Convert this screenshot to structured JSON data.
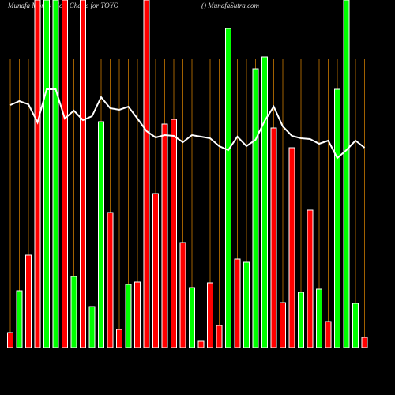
{
  "chart_data": {
    "type": "bar",
    "title": "Munafa Money Flow Charts for TOYO",
    "subtitle": "() MunafaSutra.com",
    "values": [
      19,
      72,
      117,
      440,
      440,
      440,
      440,
      90,
      440,
      52,
      286,
      171,
      23,
      80,
      83,
      440,
      195,
      283,
      289,
      133,
      76,
      8,
      82,
      28,
      404,
      112,
      108,
      353,
      368,
      278,
      57,
      253,
      70,
      174,
      74,
      33,
      327,
      440,
      56,
      13
    ],
    "colors": [
      "#ff0000",
      "#00ff00",
      "#ff0000",
      "#ff0000",
      "#00ff00",
      "#00ff00",
      "#ff0000",
      "#00ff00",
      "#ff0000",
      "#00ff00",
      "#00ff00",
      "#ff0000",
      "#ff0000",
      "#00ff00",
      "#ff0000",
      "#ff0000",
      "#ff0000",
      "#ff0000",
      "#ff0000",
      "#ff0000",
      "#00ff00",
      "#ff0000",
      "#ff0000",
      "#ff0000",
      "#00ff00",
      "#ff0000",
      "#00ff00",
      "#00ff00",
      "#00ff00",
      "#ff0000",
      "#ff0000",
      "#ff0000",
      "#00ff00",
      "#ff0000",
      "#00ff00",
      "#ff0000",
      "#00ff00",
      "#00ff00",
      "#00ff00",
      "#ff0000"
    ],
    "line": {
      "color": "#ffffff",
      "values": [
        307,
        312,
        308,
        285,
        327,
        327,
        290,
        300,
        288,
        293,
        317,
        303,
        301,
        305,
        290,
        274,
        266,
        269,
        268,
        260,
        269,
        267,
        265,
        255,
        250,
        267,
        255,
        263,
        287,
        305,
        280,
        268,
        265,
        264,
        258,
        262,
        240,
        250,
        262,
        253
      ]
    },
    "ylim": [
      0,
      440
    ],
    "grid": true,
    "grid_color": "#c87800"
  }
}
